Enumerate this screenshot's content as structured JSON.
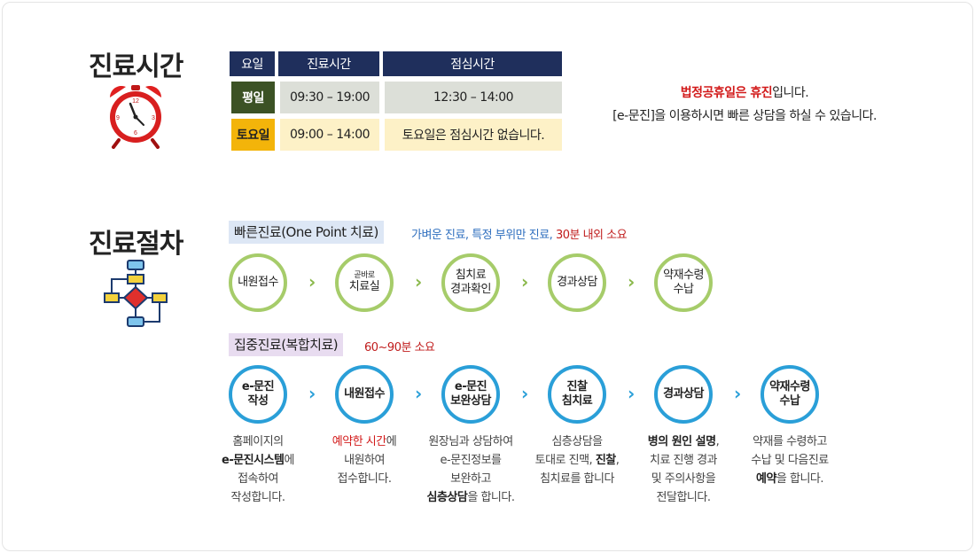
{
  "hours_section": {
    "title": "진료시간",
    "table": {
      "headers": [
        "요일",
        "진료시간",
        "점심시간"
      ],
      "rows": [
        {
          "day": "평일",
          "hours": "09:30 – 19:00",
          "lunch": "12:30 – 14:00"
        },
        {
          "day": "토요일",
          "hours": "09:00 – 14:00",
          "lunch": "토요일은 점심시간 없습니다."
        }
      ]
    },
    "notice": {
      "line1_red": "법정공휴일은 휴진",
      "line1_rest": "입니다.",
      "line2": "[e-문진]을 이용하시면 빠른 상담을 하실 수 있습니다."
    }
  },
  "procedure_section": {
    "title": "진료절차",
    "quick": {
      "tag": "빠른진료(One Point 치료)",
      "desc_main": "가벼운 진료, 특정 부위만 진료, ",
      "desc_time": "30분 내외 소요",
      "steps": [
        {
          "line1": "내원접수"
        },
        {
          "small": "곧바로",
          "line1": "치료실"
        },
        {
          "line1": "침치료",
          "line2": "경과확인"
        },
        {
          "line1": "경과상담"
        },
        {
          "line1": "약재수령",
          "line2": "수납"
        }
      ]
    },
    "intensive": {
      "tag": "집중진료(복합치료)",
      "desc": "60~90분 소요",
      "steps": [
        {
          "line1": "e-문진",
          "line2": "작성",
          "d": [
            "홈페이지의",
            "e-문진시스템",
            "에",
            "접속하여",
            "작성합니다."
          ]
        },
        {
          "line1": "내원접수",
          "d": [
            "예약한 시간",
            "에",
            "내원하여",
            "접수합니다."
          ]
        },
        {
          "line1": "e-문진",
          "line2": "보완상담",
          "d": [
            "원장님과 상담하여",
            "e-문진정보를",
            "보완하고",
            "심층상담",
            "을 합니다."
          ]
        },
        {
          "line1": "진찰",
          "line2": "침치료",
          "d": [
            "심층상담을",
            "토대로 진맥, ",
            "진찰",
            ",",
            "침치료를 합니다"
          ]
        },
        {
          "line1": "경과상담",
          "d": [
            "병의 원인 설명",
            ",",
            "치료 진행 경과",
            "및 주의사항을",
            "전달합니다."
          ]
        },
        {
          "line1": "약재수령",
          "line2": "수납",
          "d": [
            "약재를 수령하고",
            "수납 및 다음진료",
            "예약",
            "을 합니다."
          ]
        }
      ]
    }
  },
  "colors": {
    "header_navy": "#1f2f5c",
    "weekday_green": "#3c5225",
    "saturday_yellow": "#f3b40a",
    "quick_circle": "#a6cc6a",
    "intensive_circle": "#2a9fd8",
    "accent_red": "#d21a1a"
  },
  "icons": [
    "alarm-clock-icon",
    "flowchart-icon",
    "chevron-right-icon"
  ]
}
